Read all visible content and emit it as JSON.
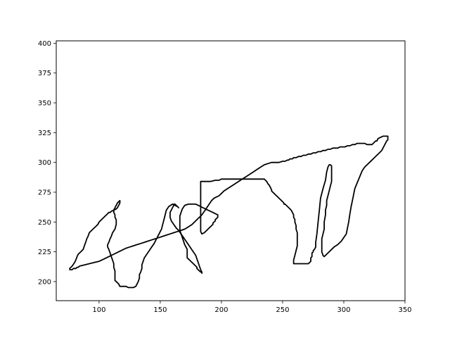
{
  "chart_data": {
    "type": "line",
    "title": "",
    "xlabel": "",
    "ylabel": "",
    "xlim": [
      65,
      350
    ],
    "ylim": [
      184,
      402
    ],
    "grid": false,
    "legend": "none",
    "line_color": "#000000",
    "x_ticks": [
      100,
      150,
      200,
      250,
      300,
      350
    ],
    "x_tick_labels": [
      "100",
      "150",
      "200",
      "250",
      "300",
      "350"
    ],
    "y_ticks": [
      200,
      225,
      250,
      275,
      300,
      325,
      350,
      375,
      400
    ],
    "y_tick_labels": [
      "200",
      "225",
      "250",
      "275",
      "300",
      "325",
      "350",
      "375",
      "400"
    ],
    "series": [
      {
        "x": [
          76,
          77,
          78,
          80,
          81,
          82,
          83,
          85,
          87,
          88,
          89,
          90,
          91,
          92,
          95,
          97,
          99,
          100,
          102,
          104,
          105,
          106,
          107,
          108,
          109,
          110,
          112,
          114,
          115,
          116,
          117,
          117,
          115,
          114,
          113,
          112,
          112,
          113,
          113,
          114,
          114,
          113,
          111,
          110,
          109,
          108,
          107,
          107,
          108,
          109,
          110,
          111,
          112,
          112,
          113,
          113,
          113,
          116,
          117,
          118,
          120,
          122,
          124,
          126,
          128,
          130,
          131,
          132,
          133,
          133,
          134,
          135,
          135,
          136,
          137,
          139,
          141,
          143,
          145,
          147,
          149,
          151,
          152,
          153,
          154,
          155,
          157,
          160,
          162,
          164,
          165,
          165,
          164,
          163,
          162,
          161,
          161,
          160,
          159,
          158,
          158,
          158,
          159,
          161,
          163,
          165,
          167,
          169,
          171,
          173,
          175,
          177,
          179,
          180,
          181,
          182,
          183,
          184,
          184,
          184,
          184,
          184,
          184,
          183,
          182,
          181,
          180,
          180,
          179,
          178,
          177,
          176,
          175,
          174,
          173,
          172,
          172,
          172,
          172,
          172,
          172,
          171,
          170,
          169,
          168,
          167,
          166,
          166,
          166,
          166,
          166,
          167,
          168,
          170,
          173,
          176,
          179,
          181,
          183,
          185,
          187,
          189,
          191,
          193,
          195,
          197,
          197,
          197,
          197,
          196,
          195,
          195,
          194,
          193,
          193,
          192,
          191,
          190,
          189,
          188,
          187,
          186,
          184,
          183,
          183,
          184,
          191,
          195,
          198,
          200,
          205,
          209,
          216,
          220,
          227,
          230,
          233,
          235,
          236,
          237,
          238,
          239,
          240,
          241,
          241,
          242,
          243,
          244,
          245,
          246,
          247,
          248,
          249,
          250,
          251,
          251,
          252,
          253,
          255,
          257,
          258,
          259,
          259,
          260,
          260,
          261,
          261,
          262,
          262,
          262,
          262,
          261,
          260,
          259,
          259,
          259,
          260,
          261,
          265,
          267,
          270,
          271,
          272,
          273,
          273,
          273,
          273,
          274,
          274,
          274,
          274,
          275,
          275,
          276,
          277,
          277,
          278,
          279,
          280,
          281,
          283,
          285,
          286,
          287,
          288,
          289,
          289,
          290,
          290,
          290,
          290,
          290,
          289,
          288,
          287,
          286,
          286,
          285,
          285,
          284,
          284,
          283,
          282,
          282,
          282,
          282,
          283,
          284,
          285,
          286,
          288,
          290,
          292,
          295,
          298,
          300,
          302,
          303,
          304,
          305,
          306,
          307,
          308,
          309,
          311,
          313,
          315,
          317,
          319,
          321,
          323,
          325,
          327,
          329,
          331,
          332,
          333,
          334,
          335,
          336,
          336,
          336,
          336,
          336,
          334,
          332,
          330,
          328,
          327,
          326,
          325,
          324,
          323,
          321,
          319,
          317,
          315,
          313,
          311,
          309,
          307,
          305,
          303,
          301,
          299,
          297,
          295,
          293,
          291,
          289,
          287,
          285,
          283,
          281,
          279,
          277,
          275,
          273,
          271,
          269,
          267,
          265,
          263,
          261,
          259,
          258,
          257,
          256,
          255,
          254,
          252,
          250,
          247,
          245,
          243,
          241,
          238,
          235,
          232,
          229,
          226,
          223,
          220,
          217,
          214,
          211,
          208,
          205,
          202,
          200,
          198,
          196,
          194,
          192,
          190,
          188,
          186,
          184,
          182,
          180,
          178,
          176,
          173,
          170,
          167,
          164,
          161,
          158,
          155,
          152,
          149,
          146,
          143,
          140,
          137,
          134,
          131,
          128,
          125,
          122,
          120,
          118,
          116,
          114,
          112,
          110,
          108,
          106,
          104,
          102,
          100,
          96,
          92,
          88,
          84,
          83,
          83,
          82,
          82,
          81,
          81,
          80,
          79,
          78,
          78,
          77,
          77,
          76
        ],
        "y": [
          211,
          212,
          213,
          216,
          218,
          221,
          223,
          225,
          227,
          230,
          233,
          236,
          238,
          241,
          244,
          246,
          248,
          250,
          252,
          254,
          255,
          256,
          257,
          258,
          258,
          259,
          260,
          261,
          262,
          264,
          266,
          268,
          266,
          264,
          262,
          260,
          258,
          256,
          254,
          252,
          248,
          244,
          241,
          238,
          236,
          233,
          231,
          229,
          227,
          224,
          221,
          218,
          215,
          212,
          209,
          205,
          201,
          198,
          196,
          196,
          196,
          196,
          195,
          195,
          195,
          196,
          198,
          200,
          203,
          206,
          208,
          211,
          214,
          217,
          220,
          223,
          226,
          229,
          232,
          236,
          240,
          244,
          248,
          252,
          256,
          260,
          263,
          265,
          264,
          263,
          262,
          262,
          263,
          264,
          265,
          265,
          264,
          262,
          260,
          258,
          256,
          254,
          251,
          248,
          245,
          243,
          240,
          237,
          234,
          231,
          228,
          225,
          222,
          219,
          216,
          213,
          210,
          208,
          207,
          207,
          207,
          207,
          208,
          208,
          209,
          210,
          211,
          212,
          213,
          214,
          215,
          216,
          217,
          218,
          219,
          220,
          221,
          222,
          223,
          225,
          227,
          229,
          231,
          234,
          237,
          240,
          243,
          246,
          249,
          252,
          255,
          258,
          261,
          264,
          265,
          265,
          265,
          264,
          263,
          262,
          261,
          260,
          259,
          258,
          257,
          256,
          256,
          255,
          254,
          253,
          252,
          251,
          250,
          249,
          248,
          247,
          246,
          245,
          244,
          243,
          242,
          241,
          240,
          242,
          284,
          284,
          284,
          285,
          285,
          286,
          286,
          286,
          286,
          286,
          286,
          286,
          286,
          286,
          285,
          284,
          282,
          281,
          279,
          277,
          276,
          275,
          274,
          273,
          272,
          271,
          270,
          269,
          268,
          267,
          266,
          265,
          265,
          264,
          262,
          260,
          258,
          256,
          254,
          252,
          250,
          247,
          244,
          241,
          238,
          234,
          230,
          226,
          222,
          218,
          216,
          215,
          215,
          215,
          215,
          215,
          215,
          215,
          216,
          217,
          218,
          219,
          220,
          221,
          222,
          223,
          224,
          225,
          226,
          227,
          229,
          233,
          240,
          250,
          260,
          270,
          278,
          285,
          292,
          296,
          298,
          298,
          298,
          297,
          295,
          292,
          288,
          284,
          280,
          276,
          272,
          268,
          264,
          260,
          256,
          250,
          244,
          240,
          236,
          232,
          228,
          225,
          222,
          221,
          222,
          223,
          225,
          227,
          229,
          231,
          234,
          237,
          240,
          245,
          250,
          257,
          263,
          268,
          273,
          278,
          283,
          288,
          293,
          296,
          298,
          300,
          302,
          304,
          306,
          308,
          310,
          312,
          314,
          316,
          318,
          319,
          320,
          321,
          322,
          322,
          322,
          322,
          321,
          320,
          318,
          318,
          317,
          316,
          315,
          315,
          315,
          316,
          316,
          316,
          316,
          315,
          315,
          314,
          314,
          313,
          313,
          313,
          312,
          312,
          312,
          311,
          311,
          310,
          310,
          309,
          309,
          308,
          308,
          307,
          307,
          306,
          306,
          305,
          305,
          304,
          304,
          303,
          303,
          303,
          302,
          302,
          301,
          301,
          300,
          300,
          300,
          300,
          299,
          298,
          296,
          294,
          292,
          290,
          288,
          286,
          284,
          282,
          280,
          278,
          276,
          274,
          272,
          271,
          270,
          268,
          265,
          262,
          259,
          256,
          254,
          252,
          250,
          248,
          246,
          244,
          243,
          242,
          241,
          240,
          239,
          238,
          237,
          236,
          235,
          234,
          233,
          232,
          231,
          230,
          229,
          228,
          227,
          226,
          225,
          224,
          223,
          222,
          221,
          220,
          219,
          218,
          217,
          216,
          215,
          214,
          213,
          212,
          212,
          212,
          212,
          211,
          211,
          211,
          211,
          210,
          210,
          210,
          210,
          210
        ]
      }
    ]
  }
}
